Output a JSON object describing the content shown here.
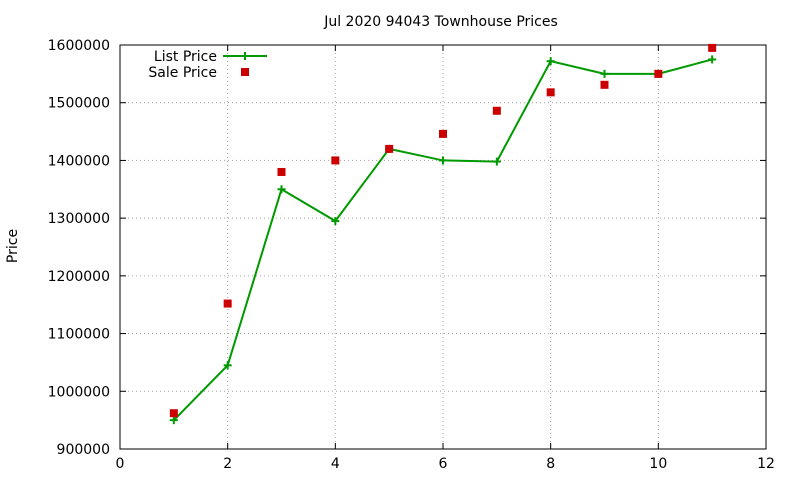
{
  "chart_data": {
    "type": "line",
    "title": "Jul 2020 94043 Townhouse Prices",
    "xlabel": "",
    "ylabel": "Price",
    "xlim": [
      0,
      12
    ],
    "ylim": [
      900000,
      1600000
    ],
    "x_ticks": [
      0,
      2,
      4,
      6,
      8,
      10,
      12
    ],
    "y_ticks": [
      900000,
      1000000,
      1100000,
      1200000,
      1300000,
      1400000,
      1500000,
      1600000
    ],
    "x_tick_labels": [
      "0",
      "2",
      "4",
      "6",
      "8",
      "10",
      "12"
    ],
    "y_tick_labels": [
      "900000",
      "1000000",
      "1100000",
      "1200000",
      "1300000",
      "1400000",
      "1500000",
      "1600000"
    ],
    "grid": true,
    "legend_placement": "top-left",
    "series": [
      {
        "name": "List Price",
        "style": "line-with-plus-markers",
        "color": "#009900",
        "x": [
          1,
          2,
          3,
          4,
          5,
          6,
          7,
          8,
          9,
          10,
          11
        ],
        "y": [
          950000,
          1045000,
          1350000,
          1295000,
          1420000,
          1400000,
          1398000,
          1572000,
          1550000,
          1550000,
          1575000
        ]
      },
      {
        "name": "Sale Price",
        "style": "square-markers",
        "color": "#cc0000",
        "x": [
          1,
          2,
          3,
          4,
          5,
          6,
          7,
          8,
          9,
          10,
          11
        ],
        "y": [
          962000,
          1152000,
          1380000,
          1400000,
          1420000,
          1446000,
          1486000,
          1518000,
          1531000,
          1550000,
          1595000
        ]
      }
    ]
  }
}
